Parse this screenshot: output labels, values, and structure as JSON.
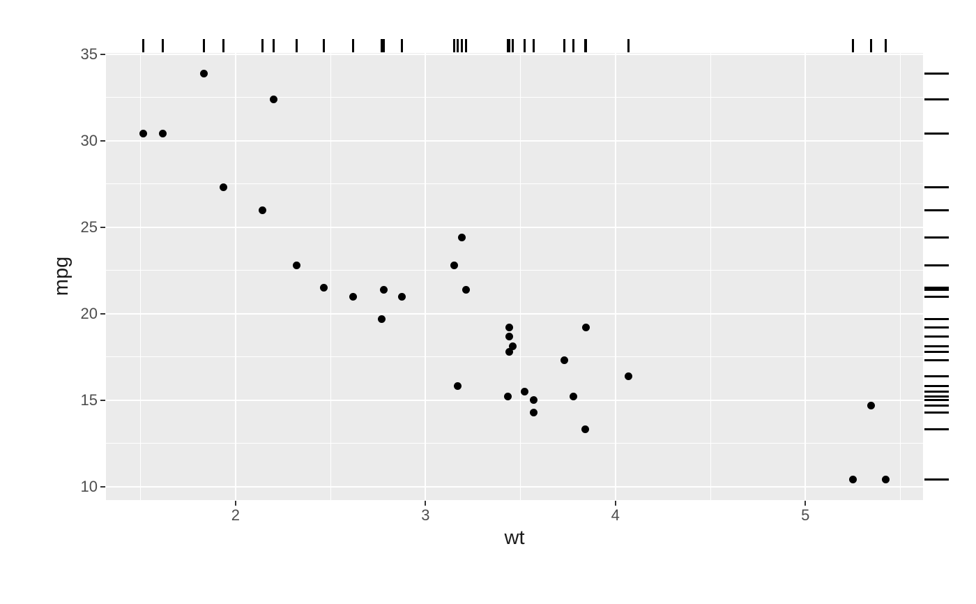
{
  "chart_data": {
    "type": "scatter",
    "title": "",
    "xlabel": "wt",
    "ylabel": "mpg",
    "xlim": [
      1.3175,
      5.6195
    ],
    "ylim": [
      9.225,
      35.075
    ],
    "x_ticks": [
      2,
      3,
      4,
      5
    ],
    "y_ticks": [
      10,
      15,
      20,
      25,
      30,
      35
    ],
    "x_minor": [
      1.5,
      2.5,
      3.5,
      4.5,
      5.5
    ],
    "y_minor": [
      12.5,
      17.5,
      22.5,
      27.5,
      32.5
    ],
    "grid": "on",
    "legend_position": "none",
    "rug_sides": [
      "top",
      "right"
    ],
    "points": [
      {
        "wt": 2.62,
        "mpg": 21.0
      },
      {
        "wt": 2.875,
        "mpg": 21.0
      },
      {
        "wt": 2.32,
        "mpg": 22.8
      },
      {
        "wt": 3.215,
        "mpg": 21.4
      },
      {
        "wt": 3.44,
        "mpg": 18.7
      },
      {
        "wt": 3.46,
        "mpg": 18.1
      },
      {
        "wt": 3.57,
        "mpg": 14.3
      },
      {
        "wt": 3.19,
        "mpg": 24.4
      },
      {
        "wt": 3.15,
        "mpg": 22.8
      },
      {
        "wt": 3.44,
        "mpg": 19.2
      },
      {
        "wt": 3.44,
        "mpg": 17.8
      },
      {
        "wt": 4.07,
        "mpg": 16.4
      },
      {
        "wt": 3.73,
        "mpg": 17.3
      },
      {
        "wt": 3.78,
        "mpg": 15.2
      },
      {
        "wt": 5.25,
        "mpg": 10.4
      },
      {
        "wt": 5.424,
        "mpg": 10.4
      },
      {
        "wt": 5.345,
        "mpg": 14.7
      },
      {
        "wt": 2.2,
        "mpg": 32.4
      },
      {
        "wt": 1.615,
        "mpg": 30.4
      },
      {
        "wt": 1.835,
        "mpg": 33.9
      },
      {
        "wt": 2.465,
        "mpg": 21.5
      },
      {
        "wt": 3.52,
        "mpg": 15.5
      },
      {
        "wt": 3.435,
        "mpg": 15.2
      },
      {
        "wt": 3.84,
        "mpg": 13.3
      },
      {
        "wt": 3.845,
        "mpg": 19.2
      },
      {
        "wt": 1.935,
        "mpg": 27.3
      },
      {
        "wt": 2.14,
        "mpg": 26.0
      },
      {
        "wt": 1.513,
        "mpg": 30.4
      },
      {
        "wt": 3.17,
        "mpg": 15.8
      },
      {
        "wt": 2.77,
        "mpg": 19.7
      },
      {
        "wt": 3.57,
        "mpg": 15.0
      },
      {
        "wt": 2.78,
        "mpg": 21.4
      }
    ],
    "colors": {
      "background": "#FFFFFF",
      "panel_bg": "#EBEBEB",
      "grid": "#FFFFFF",
      "point": "#000000",
      "rug": "#000000",
      "tick_mark": "#333333",
      "tick_label": "#4D4D4D",
      "axis_title": "#1A1A1A"
    }
  }
}
